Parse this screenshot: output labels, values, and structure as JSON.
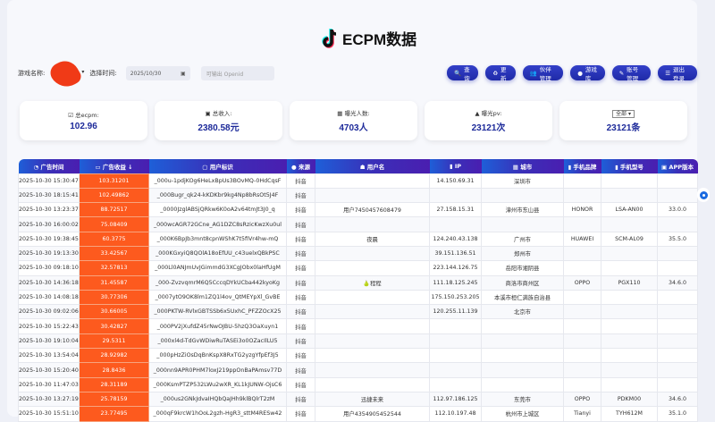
{
  "header": {
    "title": "ECPM数据",
    "logo": "tiktok-note-icon"
  },
  "filters": {
    "game_label": "游戏名称:",
    "time_label": "选择时间:",
    "date_value": "2025/10/30",
    "openid_placeholder": "可输出 Openid"
  },
  "buttons": [
    {
      "icon": "🔍",
      "label": "查询"
    },
    {
      "icon": "♻",
      "label": "更新"
    },
    {
      "icon": "👥",
      "label": "伙伴管理"
    },
    {
      "icon": "●",
      "label": "游戏库"
    },
    {
      "icon": "✎",
      "label": "账号管理"
    },
    {
      "icon": "☰",
      "label": "退出登录"
    }
  ],
  "stats": [
    {
      "icon": "☑",
      "label": "总ecpm:",
      "value": "102.96"
    },
    {
      "icon": "▣",
      "label": "总收入:",
      "value": "2380.58元"
    },
    {
      "icon": "▦",
      "label": "曝光人数:",
      "value": "4703人"
    },
    {
      "icon": "▲",
      "label": "曝光pv:",
      "value": "23121次"
    },
    {
      "select": "全部",
      "value": "23121条"
    }
  ],
  "table": {
    "headers": [
      "◔ 广告时间",
      "▭ 广告收益 ↓",
      "▢ 用户标识",
      "● 来源",
      "☗ 用户名",
      "▮ IP",
      "▦ 城市",
      "▮ 手机品牌",
      "▮ 手机型号",
      "▣ APP版本"
    ],
    "rows": [
      [
        "2025-10-30 15:30:47",
        "103.31201",
        "_000u-1pdjKOg6HeLxBpUs3BOvMQ-0HdCqsF",
        "抖音",
        "",
        "14.150.69.31",
        "深圳市",
        "",
        "",
        ""
      ],
      [
        "2025-10-30 18:15:41",
        "102.49862",
        "_000Bugr_qk24-kKDKbr9kg4Np8bRsOt5J4F",
        "抖音",
        "",
        "",
        "",
        "",
        "",
        ""
      ],
      [
        "2025-10-30 13:23:37",
        "88.72517",
        "_0000JzglABSjQRkw6K0oA2v64tmJt3J0_q",
        "抖音",
        "用户7450457608479",
        "27.158.15.31",
        "漳州市东山县",
        "HONOR",
        "LSA-AN00",
        "33.0.0"
      ],
      [
        "2025-10-30 16:00:02",
        "75.08409",
        "_000wcAGR72GCne_AG1DZC8sRzicKwzXu0ul",
        "抖音",
        "",
        "",
        "",
        "",
        "",
        ""
      ],
      [
        "2025-10-30 19:38:45",
        "60.3775",
        "_000K6BpJb3mnt8cpnWShK7t5fiVr4hw-mQ",
        "抖音",
        "夜晨",
        "124.240.43.138",
        "广州市",
        "HUAWEI",
        "SCM-AL09",
        "35.5.0"
      ],
      [
        "2025-10-30 19:13:30",
        "33.42567",
        "_000KGxyiQ8QOlA18oEfUU_c43uelxQBkPSC",
        "抖音",
        "",
        "39.151.136.51",
        "郑州市",
        "",
        "",
        ""
      ],
      [
        "2025-10-30 09:18:10",
        "32.57813",
        "_000Ll0ANJmUvJGimmdG3XCgJObx0laHfUgM",
        "抖音",
        "",
        "223.144.126.75",
        "岳阳市湘阴县",
        "",
        "",
        ""
      ],
      [
        "2025-10-30 14:36:18",
        "31.45587",
        "_000-ZvzvqmrM6Q5CccqDYkUCba442kyoKg",
        "抖音",
        "🍐程程",
        "111.18.125.245",
        "商洛市商州区",
        "OPPO",
        "PGX110",
        "34.6.0"
      ],
      [
        "2025-10-30 14:08:18",
        "30.77306",
        "_0007ytO9OK8lm1ZQ1l4ov_QtMEYpXl_GvBE",
        "抖音",
        "",
        "175.150.253.205",
        "本溪市桓仁满族自治县",
        "",
        "",
        ""
      ],
      [
        "2025-10-30 09:02:06",
        "30.66005",
        "_000PKTW-RVlxGBTSSb6x5UxhC_PFZZOcX25",
        "抖音",
        "",
        "120.255.11.139",
        "北京市",
        "",
        "",
        ""
      ],
      [
        "2025-10-30 15:22:43",
        "30.42827",
        "_000PV2jXufdZ45rNwOJBU-5hzQ3OaXuyn1",
        "抖音",
        "",
        "",
        "",
        "",
        "",
        ""
      ],
      [
        "2025-10-30 19:10:04",
        "29.5311",
        "_000xl4d-TdGvWDiwRuTASEi3o0OZacIlLU5",
        "抖音",
        "",
        "",
        "",
        "",
        "",
        ""
      ],
      [
        "2025-10-30 13:54:04",
        "28.92982",
        "_000pHzZiOsDqBnKspX8RxTG2yzgYfpEf3J5",
        "抖音",
        "",
        "",
        "",
        "",
        "",
        ""
      ],
      [
        "2025-10-30 15:20:40",
        "28.8436",
        "_000nn9APR0PHM7loxJ219ppOnBaPAmsv77D",
        "抖音",
        "",
        "",
        "",
        "",
        "",
        ""
      ],
      [
        "2025-10-30 11:47:03",
        "28.31189",
        "_000KsmPTZP532LWu2wXR_KL1kJUNW-OjsC6",
        "抖音",
        "",
        "",
        "",
        "",
        "",
        ""
      ],
      [
        "2025-10-30 13:27:19",
        "25.78159",
        "_000us2GNkJdvaIHQbQaJHh9klBQlrT2zM",
        "抖音",
        "迅捷未来",
        "112.97.186.125",
        "东莞市",
        "OPPO",
        "PDKM00",
        "34.6.0"
      ],
      [
        "2025-10-30 15:51:10",
        "23.77495",
        "_000qF9krcW1hOoL2gzh-HgR3_sttM4RESw42",
        "抖音",
        "用户4354905452544",
        "112.10.197.48",
        "杭州市上城区",
        "Tianyi",
        "TYH612M",
        "35.1.0"
      ]
    ]
  }
}
